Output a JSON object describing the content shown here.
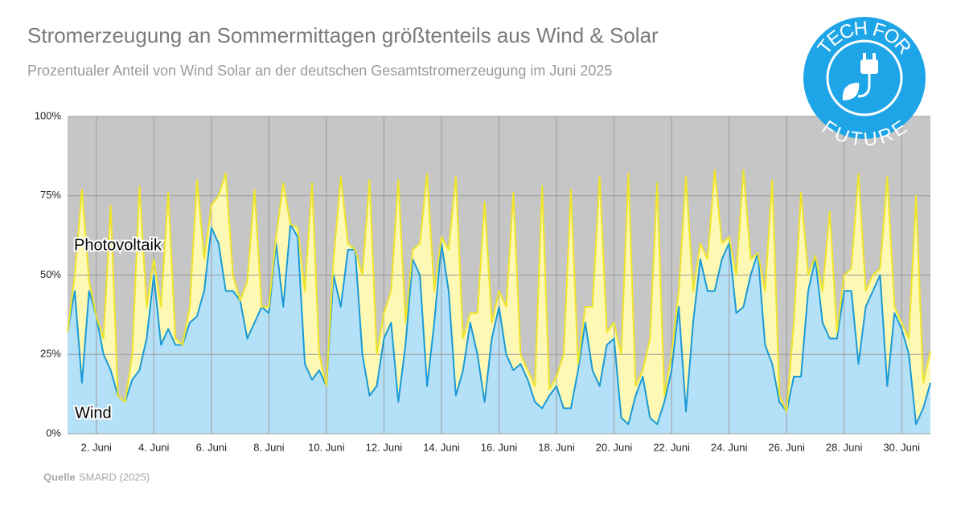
{
  "chart_data": {
    "type": "stacked_area",
    "title": "Stromerzeugung an Sommermittagen größtenteils aus Wind & Solar",
    "subtitle": "Prozentualer Anteil von Wind Solar an der deutschen Gesamtstromerzeugung im Juni 2025",
    "source": {
      "label": "Quelle",
      "text": "SMARD (2025)"
    },
    "logo": {
      "top": "TECH FOR",
      "bottom": "FUTURE"
    },
    "x": [
      1,
      1.25,
      1.5,
      1.75,
      2,
      2.25,
      2.5,
      2.75,
      3,
      3.25,
      3.5,
      3.75,
      4,
      4.25,
      4.5,
      4.75,
      5,
      5.25,
      5.5,
      5.75,
      6,
      6.25,
      6.5,
      6.75,
      7,
      7.25,
      7.5,
      7.75,
      8,
      8.25,
      8.5,
      8.75,
      9,
      9.25,
      9.5,
      9.75,
      10,
      10.25,
      10.5,
      10.75,
      11,
      11.25,
      11.5,
      11.75,
      12,
      12.25,
      12.5,
      12.75,
      13,
      13.25,
      13.5,
      13.75,
      14,
      14.25,
      14.5,
      14.75,
      15,
      15.25,
      15.5,
      15.75,
      16,
      16.25,
      16.5,
      16.75,
      17,
      17.25,
      17.5,
      17.75,
      18,
      18.25,
      18.5,
      18.75,
      19,
      19.25,
      19.5,
      19.75,
      20,
      20.25,
      20.5,
      20.75,
      21,
      21.25,
      21.5,
      21.75,
      22,
      22.25,
      22.5,
      22.75,
      23,
      23.25,
      23.5,
      23.75,
      24,
      24.25,
      24.5,
      24.75,
      25,
      25.25,
      25.5,
      25.75,
      26,
      26.25,
      26.5,
      26.75,
      27,
      27.25,
      27.5,
      27.75,
      28,
      28.25,
      28.5,
      28.75,
      29,
      29.25,
      29.5,
      29.75,
      30,
      30.25,
      30.5,
      30.75,
      31
    ],
    "series": [
      {
        "name": "Wind",
        "color": "#1a9ad6",
        "fill": "#b5e1f8",
        "values": [
          32,
          45,
          16,
          45,
          37,
          25,
          20,
          12,
          10,
          17,
          20,
          30,
          50,
          28,
          33,
          28,
          28,
          35,
          37,
          45,
          65,
          60,
          45,
          45,
          42,
          30,
          35,
          40,
          38,
          60,
          40,
          66,
          62,
          22,
          17,
          20,
          15,
          50,
          40,
          58,
          58,
          25,
          12,
          15,
          30,
          35,
          10,
          28,
          55,
          50,
          15,
          35,
          60,
          45,
          12,
          20,
          35,
          25,
          10,
          30,
          40,
          25,
          20,
          22,
          17,
          10,
          8,
          12,
          15,
          8,
          8,
          20,
          35,
          20,
          15,
          28,
          30,
          5,
          3,
          12,
          18,
          5,
          3,
          10,
          20,
          40,
          7,
          35,
          55,
          45,
          45,
          55,
          60,
          38,
          40,
          50,
          57,
          28,
          22,
          10,
          7,
          18,
          18,
          45,
          55,
          35,
          30,
          30,
          45,
          45,
          22,
          40,
          45,
          50,
          15,
          38,
          33,
          25,
          3,
          8,
          16
        ]
      },
      {
        "name": "Photovoltaik",
        "color": "#efe52a",
        "fill": "#fdf8b4",
        "values": [
          0,
          5,
          61,
          3,
          0,
          5,
          52,
          0,
          0,
          8,
          58,
          10,
          5,
          12,
          43,
          2,
          0,
          5,
          43,
          10,
          7,
          15,
          37,
          5,
          0,
          18,
          42,
          0,
          2,
          2,
          39,
          0,
          3,
          23,
          62,
          5,
          0,
          5,
          41,
          2,
          0,
          25,
          68,
          10,
          8,
          10,
          70,
          7,
          3,
          10,
          67,
          10,
          2,
          13,
          69,
          10,
          3,
          13,
          63,
          5,
          5,
          15,
          56,
          3,
          3,
          5,
          70,
          2,
          3,
          17,
          69,
          2,
          5,
          20,
          66,
          4,
          5,
          20,
          79,
          3,
          2,
          25,
          76,
          2,
          5,
          5,
          74,
          10,
          5,
          10,
          38,
          5,
          2,
          12,
          43,
          5,
          0,
          17,
          58,
          2,
          0,
          17,
          58,
          5,
          1,
          10,
          40,
          2,
          5,
          7,
          60,
          5,
          5,
          2,
          66,
          2,
          2,
          5,
          72,
          8,
          10
        ]
      }
    ],
    "xlim": [
      1,
      31
    ],
    "xticks": [
      {
        "value": 2,
        "label": "2. Juni"
      },
      {
        "value": 4,
        "label": "4. Juni"
      },
      {
        "value": 6,
        "label": "6. Juni"
      },
      {
        "value": 8,
        "label": "8. Juni"
      },
      {
        "value": 10,
        "label": "10. Juni"
      },
      {
        "value": 12,
        "label": "12. Juni"
      },
      {
        "value": 14,
        "label": "14. Juni"
      },
      {
        "value": 16,
        "label": "16. Juni"
      },
      {
        "value": 18,
        "label": "18. Juni"
      },
      {
        "value": 20,
        "label": "20. Juni"
      },
      {
        "value": 22,
        "label": "22. Juni"
      },
      {
        "value": 24,
        "label": "24. Juni"
      },
      {
        "value": 26,
        "label": "26. Juni"
      },
      {
        "value": 28,
        "label": "28. Juni"
      },
      {
        "value": 30,
        "label": "30. Juni"
      }
    ],
    "ylim": [
      0,
      100
    ],
    "yticks": [
      {
        "value": 0,
        "label": "0%"
      },
      {
        "value": 25,
        "label": "25%"
      },
      {
        "value": 50,
        "label": "50%"
      },
      {
        "value": 75,
        "label": "75%"
      },
      {
        "value": 100,
        "label": "100%"
      }
    ],
    "grid": true
  }
}
